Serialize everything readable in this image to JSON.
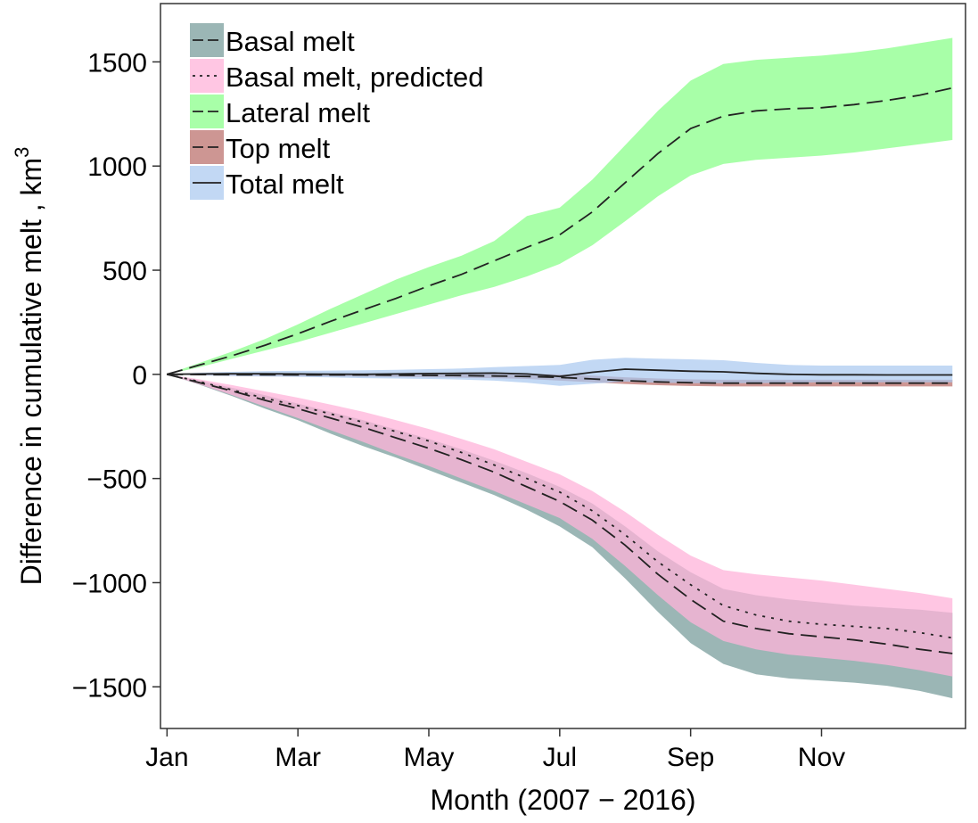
{
  "chart_data": {
    "type": "area",
    "xlabel": "Month (2007 − 2016)",
    "ylabel": "Difference in cumulative melt , km",
    "ylabel_superscript": "3",
    "x_months": [
      1,
      12
    ],
    "xlim": [
      0.9,
      13.2
    ],
    "ylim": [
      -1700,
      1780
    ],
    "x_ticks": [
      {
        "value": 1,
        "label": "Jan"
      },
      {
        "value": 3,
        "label": "Mar"
      },
      {
        "value": 5,
        "label": "May"
      },
      {
        "value": 7,
        "label": "Jul"
      },
      {
        "value": 9,
        "label": "Sep"
      },
      {
        "value": 11,
        "label": "Nov"
      }
    ],
    "y_ticks": [
      {
        "value": 1500,
        "label": "1500"
      },
      {
        "value": 1000,
        "label": "1000"
      },
      {
        "value": 500,
        "label": "500"
      },
      {
        "value": 0,
        "label": "0"
      },
      {
        "value": -500,
        "label": "−500"
      },
      {
        "value": -1000,
        "label": "−1000"
      },
      {
        "value": -1500,
        "label": "−1500"
      }
    ],
    "grid": false,
    "legend_position": "top-left",
    "x": [
      1,
      1.5,
      2,
      2.5,
      3,
      3.5,
      4,
      4.5,
      5,
      5.5,
      6,
      6.5,
      7,
      7.5,
      8,
      8.5,
      9,
      9.5,
      10,
      10.5,
      11,
      11.5,
      12,
      12.5,
      13
    ],
    "series": [
      {
        "name": "Basal melt",
        "line_style": "dashed",
        "fill_color": "#7a9e9c",
        "fill_opacity": 0.75,
        "center": [
          0,
          -40,
          -80,
          -125,
          -165,
          -210,
          -255,
          -305,
          -355,
          -410,
          -470,
          -540,
          -610,
          -700,
          -820,
          -960,
          -1080,
          -1185,
          -1220,
          -1245,
          -1260,
          -1275,
          -1295,
          -1320,
          -1340
        ],
        "lower": [
          0,
          -50,
          -105,
          -165,
          -220,
          -285,
          -345,
          -400,
          -460,
          -520,
          -580,
          -650,
          -730,
          -830,
          -980,
          -1140,
          -1290,
          -1390,
          -1440,
          -1460,
          -1470,
          -1480,
          -1495,
          -1520,
          -1555
        ],
        "upper": [
          0,
          -30,
          -65,
          -100,
          -140,
          -180,
          -220,
          -265,
          -310,
          -360,
          -415,
          -475,
          -540,
          -620,
          -730,
          -850,
          -950,
          -1030,
          -1060,
          -1080,
          -1095,
          -1110,
          -1120,
          -1130,
          -1145
        ]
      },
      {
        "name": "Basal melt, predicted",
        "line_style": "dotted",
        "fill_color": "#ffb3d9",
        "fill_opacity": 0.75,
        "center": [
          0,
          -35,
          -75,
          -115,
          -150,
          -190,
          -230,
          -275,
          -320,
          -375,
          -435,
          -500,
          -565,
          -655,
          -770,
          -900,
          -1010,
          -1110,
          -1155,
          -1185,
          -1200,
          -1210,
          -1220,
          -1240,
          -1265
        ],
        "lower": [
          0,
          -48,
          -100,
          -155,
          -210,
          -268,
          -325,
          -385,
          -440,
          -500,
          -560,
          -625,
          -690,
          -790,
          -920,
          -1060,
          -1190,
          -1280,
          -1320,
          -1345,
          -1360,
          -1375,
          -1395,
          -1420,
          -1450
        ],
        "upper": [
          0,
          -24,
          -52,
          -82,
          -112,
          -145,
          -180,
          -220,
          -262,
          -310,
          -360,
          -420,
          -480,
          -560,
          -660,
          -770,
          -870,
          -940,
          -960,
          -975,
          -990,
          -1010,
          -1030,
          -1050,
          -1075
        ]
      },
      {
        "name": "Lateral melt",
        "line_style": "dashed",
        "fill_color": "#99ff99",
        "fill_opacity": 0.85,
        "center": [
          0,
          45,
          90,
          140,
          195,
          255,
          310,
          365,
          425,
          480,
          545,
          610,
          670,
          780,
          920,
          1060,
          1180,
          1240,
          1265,
          1275,
          1280,
          1295,
          1315,
          1340,
          1375
        ],
        "lower": [
          0,
          35,
          75,
          115,
          155,
          200,
          245,
          290,
          335,
          380,
          420,
          470,
          530,
          620,
          735,
          855,
          955,
          1010,
          1030,
          1040,
          1050,
          1065,
          1085,
          1105,
          1125
        ],
        "upper": [
          0,
          55,
          110,
          170,
          240,
          315,
          385,
          455,
          515,
          570,
          640,
          760,
          800,
          935,
          1100,
          1265,
          1410,
          1490,
          1510,
          1520,
          1530,
          1545,
          1565,
          1590,
          1615
        ]
      },
      {
        "name": "Top melt",
        "line_style": "dashed",
        "fill_color": "#c07c78",
        "fill_opacity": 0.8,
        "center": [
          0,
          -1,
          -2,
          -2,
          -3,
          -3,
          -3,
          -4,
          -5,
          -6,
          -8,
          -10,
          -15,
          -22,
          -30,
          -36,
          -40,
          -42,
          -42,
          -42,
          -42,
          -42,
          -42,
          -42,
          -42
        ],
        "lower": [
          0,
          -4,
          -6,
          -7,
          -8,
          -9,
          -10,
          -12,
          -14,
          -16,
          -18,
          -22,
          -30,
          -38,
          -46,
          -52,
          -56,
          -58,
          -58,
          -58,
          -58,
          -58,
          -58,
          -58,
          -58
        ],
        "upper": [
          0,
          2,
          2,
          3,
          2,
          3,
          4,
          4,
          4,
          4,
          2,
          2,
          0,
          -6,
          -14,
          -20,
          -24,
          -26,
          -26,
          -26,
          -26,
          -26,
          -26,
          -26,
          -26
        ]
      },
      {
        "name": "Total melt",
        "line_style": "solid",
        "fill_color": "#a8c8f0",
        "fill_opacity": 0.7,
        "center": [
          0,
          2,
          3,
          3,
          2,
          1,
          0,
          2,
          4,
          5,
          6,
          2,
          -10,
          10,
          25,
          20,
          15,
          12,
          5,
          0,
          -2,
          -2,
          -3,
          -3,
          -3
        ],
        "lower": [
          0,
          -5,
          -8,
          -10,
          -12,
          -15,
          -18,
          -20,
          -22,
          -25,
          -30,
          -40,
          -55,
          -45,
          -35,
          -40,
          -42,
          -42,
          -42,
          -40,
          -38,
          -38,
          -38,
          -38,
          -38
        ],
        "upper": [
          0,
          8,
          12,
          15,
          17,
          18,
          20,
          22,
          25,
          28,
          35,
          40,
          45,
          70,
          80,
          75,
          72,
          68,
          55,
          45,
          42,
          42,
          42,
          42,
          42
        ]
      }
    ]
  }
}
